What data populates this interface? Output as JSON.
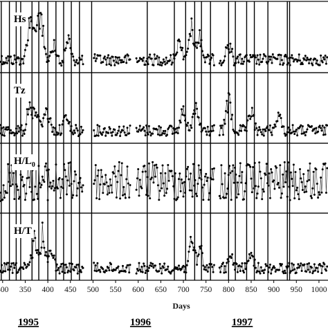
{
  "chart_data": {
    "type": "line",
    "xlabel": "Days",
    "xlim": [
      285,
      1020
    ],
    "xticks": [
      300,
      350,
      400,
      450,
      500,
      550,
      600,
      650,
      700,
      750,
      800,
      850,
      900,
      950,
      1000
    ],
    "x_tick_labels": [
      "300",
      "350",
      "400",
      "450",
      "500",
      "550",
      "600",
      "650",
      "700",
      "750",
      "800",
      "850",
      "900",
      "950",
      "1000"
    ],
    "years": [
      {
        "label": "1995",
        "x": 357
      },
      {
        "label": "1996",
        "x": 605
      },
      {
        "label": "1997",
        "x": 830
      }
    ],
    "vertical_lines": [
      297,
      315,
      330,
      340,
      365,
      380,
      400,
      418,
      435,
      452,
      470,
      497,
      620,
      680,
      705,
      725,
      740,
      760,
      800,
      815,
      840,
      857,
      887,
      930,
      935
    ],
    "gaps": [
      [
        480,
        500
      ],
      [
        583,
        595
      ],
      [
        770,
        778
      ]
    ],
    "panels": [
      {
        "name": "Hs",
        "label": "Hs",
        "sub": "",
        "events": [
          [
            360,
            0.85
          ],
          [
            385,
            1.0
          ],
          [
            373,
            0.65
          ],
          [
            413,
            0.4
          ],
          [
            445,
            0.45
          ],
          [
            690,
            0.45
          ],
          [
            718,
            0.7
          ],
          [
            735,
            0.55
          ],
          [
            800,
            0.3
          ]
        ]
      },
      {
        "name": "Tz",
        "label": "Tz",
        "sub": "",
        "events": [
          [
            360,
            0.55
          ],
          [
            375,
            0.55
          ],
          [
            398,
            0.5
          ],
          [
            440,
            0.3
          ],
          [
            700,
            0.4
          ],
          [
            728,
            0.5
          ],
          [
            800,
            0.75
          ],
          [
            850,
            0.4
          ],
          [
            910,
            0.35
          ]
        ]
      },
      {
        "name": "H/L0",
        "label": "H/L",
        "sub": "0",
        "events": []
      },
      {
        "name": "H/T",
        "label": "H/T",
        "sub": "",
        "events": [
          [
            370,
            0.65
          ],
          [
            388,
            0.75
          ],
          [
            408,
            0.4
          ],
          [
            718,
            0.7
          ],
          [
            736,
            0.55
          ],
          [
            805,
            0.25
          ],
          [
            850,
            0.3
          ]
        ]
      }
    ]
  }
}
